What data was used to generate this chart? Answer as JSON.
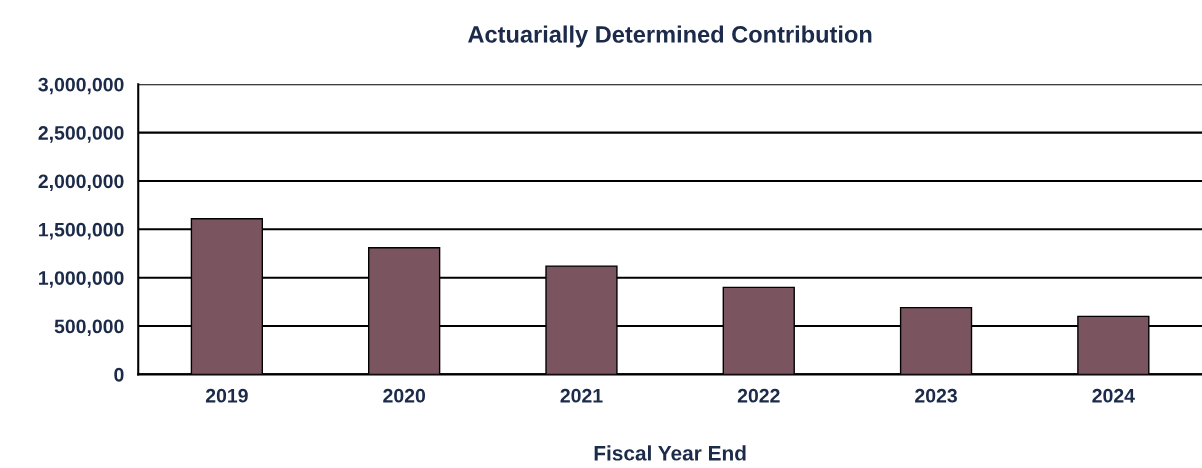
{
  "chart_data": {
    "type": "bar",
    "title": "Actuarially Determined Contribution",
    "xlabel": "Fiscal Year End",
    "categories": [
      "2019",
      "2020",
      "2021",
      "2022",
      "2023",
      "2024"
    ],
    "values": [
      1610000,
      1310000,
      1120000,
      900000,
      690000,
      600000
    ],
    "color": "#7a5560",
    "ylim": [
      0,
      3000000
    ],
    "yticks": [
      {
        "value": 0,
        "label": "0"
      },
      {
        "value": 500000,
        "label": "500,000"
      },
      {
        "value": 1000000,
        "label": "1,000,000"
      },
      {
        "value": 1500000,
        "label": "1,500,000"
      },
      {
        "value": 2000000,
        "label": "2,000,000"
      },
      {
        "value": 2500000,
        "label": "2,500,000"
      },
      {
        "value": 3000000,
        "label": "3,000,000"
      }
    ],
    "grid": "y"
  }
}
